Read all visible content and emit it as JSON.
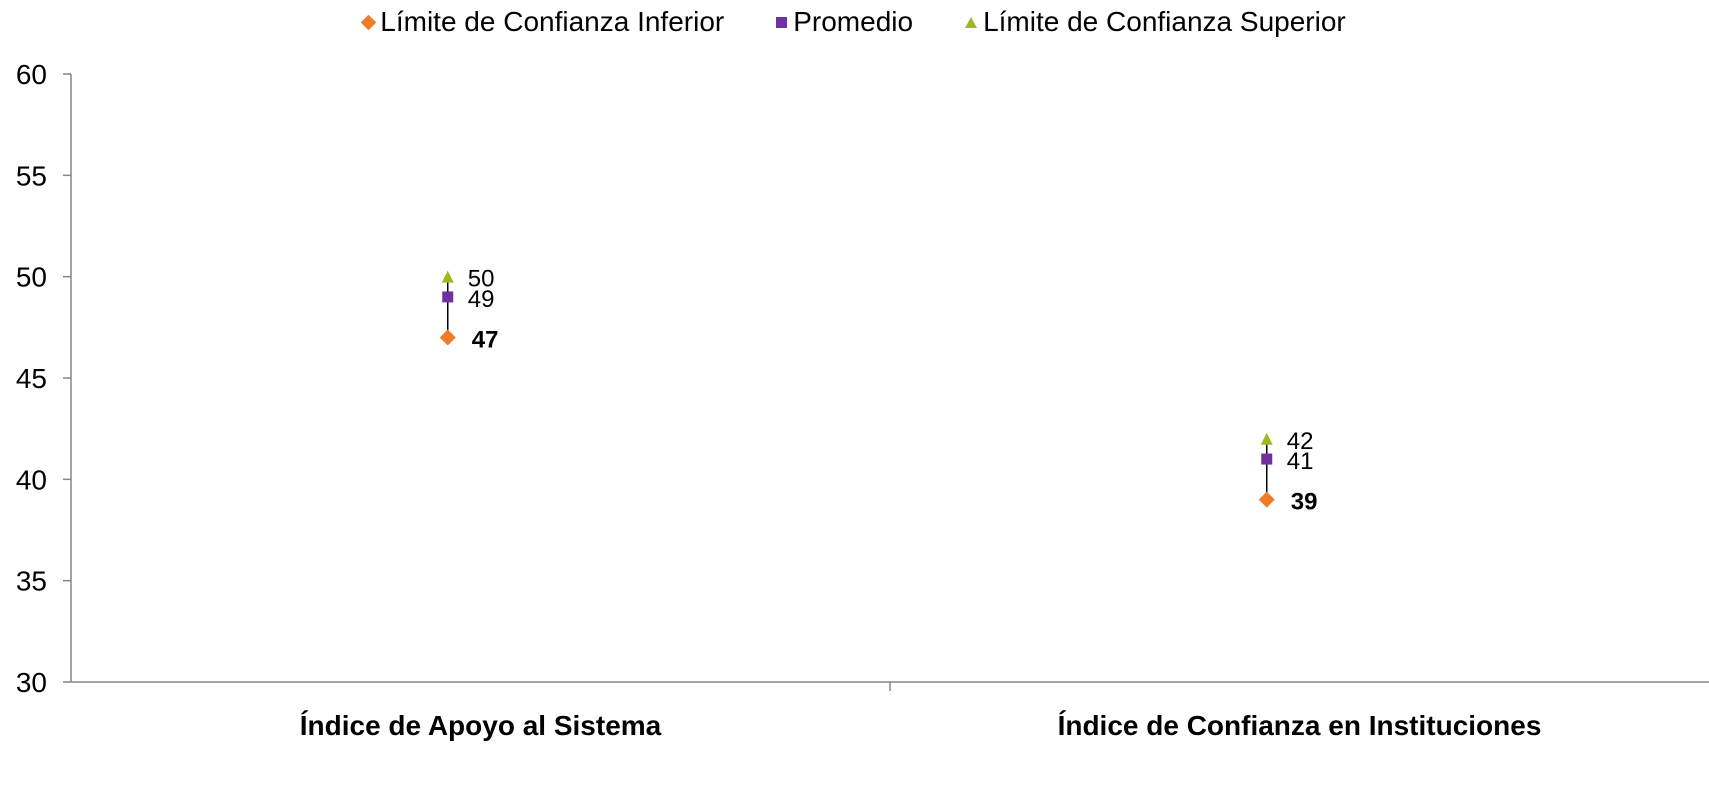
{
  "chart_data": {
    "type": "scatter",
    "categories": [
      "Índice de Apoyo al Sistema",
      "Índice de Confianza en Instituciones"
    ],
    "series": [
      {
        "name": "Límite de Confianza Inferior",
        "values": [
          47,
          39
        ],
        "color": "#f07c2a",
        "marker": "diamond"
      },
      {
        "name": "Promedio",
        "values": [
          49,
          41
        ],
        "color": "#7030a0",
        "marker": "square"
      },
      {
        "name": "Límite de Confianza Superior",
        "values": [
          50,
          42
        ],
        "color": "#9bbb1c",
        "marker": "triangle"
      }
    ],
    "data_labels": [
      [
        "47",
        "39"
      ],
      [
        "49",
        "41"
      ],
      [
        "50",
        "42"
      ]
    ],
    "ylim": [
      30,
      60
    ],
    "yticks": [
      "30",
      "35",
      "40",
      "45",
      "50",
      "55",
      "60"
    ],
    "error_bars": true,
    "grid": false,
    "legend_position": "top",
    "xlabel": "",
    "ylabel": "",
    "title": ""
  }
}
